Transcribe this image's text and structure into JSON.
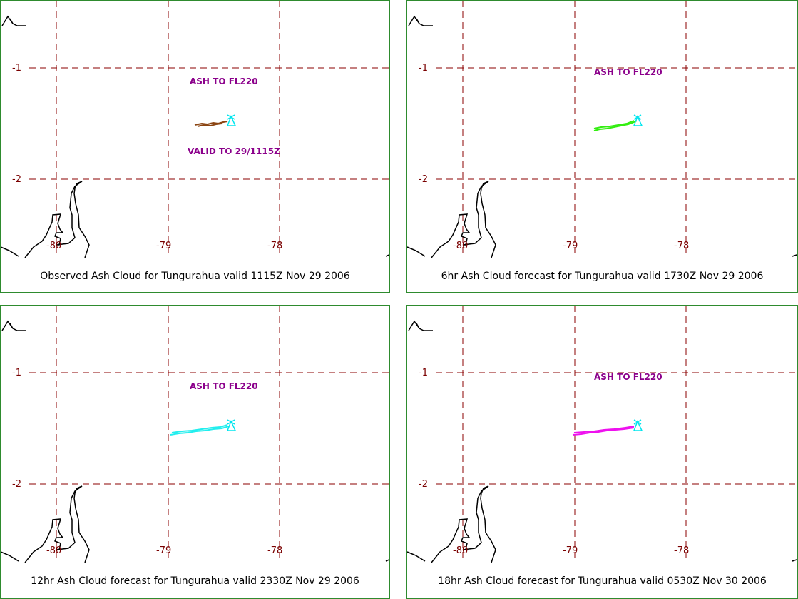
{
  "colors": {
    "border": "#2e8b2e",
    "grid": "#8b0000",
    "tick_label": "#7a0000",
    "annotation": "#8b008b",
    "volcano": "#00e5ee",
    "coastline": "#000000"
  },
  "panels": [
    {
      "caption": "Observed Ash Cloud for Tungurahua valid 1115Z Nov 29 2006",
      "annotation_top": "ASH TO FL220",
      "annotation_bottom": "VALID TO 29/1115Z",
      "cloud_color": "#8b4513",
      "lat_labels": [
        "-1",
        "-2"
      ],
      "lon_labels": [
        "-80",
        "-79",
        "-78"
      ]
    },
    {
      "caption": "6hr Ash Cloud forecast for Tungurahua valid 1730Z Nov 29 2006",
      "annotation_top": "ASH TO FL220",
      "annotation_bottom": "",
      "cloud_color": "#33ee11",
      "lat_labels": [
        "-1",
        "-2"
      ],
      "lon_labels": [
        "-80",
        "-79",
        "-78"
      ]
    },
    {
      "caption": "12hr Ash Cloud forecast for Tungurahua valid 2330Z Nov 29 2006",
      "annotation_top": "ASH TO FL220",
      "annotation_bottom": "",
      "cloud_color": "#22eeee",
      "lat_labels": [
        "-1",
        "-2"
      ],
      "lon_labels": [
        "-80",
        "-79",
        "-78"
      ]
    },
    {
      "caption": "18hr Ash Cloud forecast for Tungurahua valid 0530Z Nov 30 2006",
      "annotation_top": "ASH TO FL220",
      "annotation_bottom": "",
      "cloud_color": "#ee11ee",
      "lat_labels": [
        "-1",
        "-2"
      ],
      "lon_labels": [
        "-80",
        "-79",
        "-78"
      ]
    }
  ]
}
